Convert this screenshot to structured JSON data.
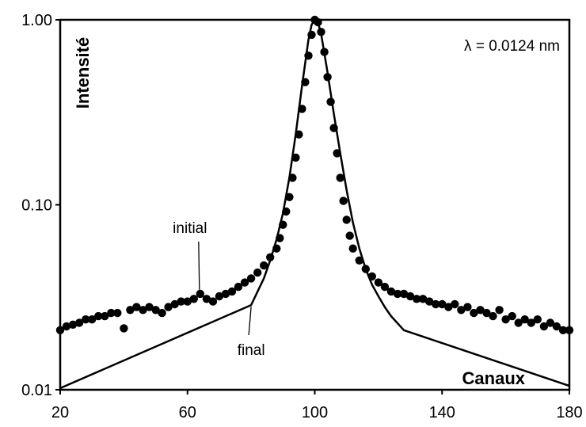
{
  "chart_data": {
    "type": "scatter",
    "title": "",
    "xlabel": "Canaux",
    "ylabel": "Intensité",
    "xlim": [
      20,
      180
    ],
    "ylim": [
      0.01,
      1.0
    ],
    "yscale": "log",
    "grid": false,
    "x_ticks": [
      "20",
      "60",
      "100",
      "140",
      "180"
    ],
    "x_tick_values": [
      20,
      60,
      100,
      140,
      180
    ],
    "y_ticks": [
      "0.01",
      "0.10",
      "1.00"
    ],
    "y_tick_values": [
      0.01,
      0.1,
      1.0
    ],
    "annotation": "λ = 0.0124 nm",
    "series": [
      {
        "name": "initial",
        "style": "points",
        "color": "#000000",
        "x": [
          20,
          22,
          24,
          26,
          28,
          30,
          32,
          34,
          36,
          38,
          40,
          42,
          44,
          46,
          48,
          50,
          52,
          54,
          56,
          58,
          60,
          62,
          64,
          66,
          68,
          70,
          72,
          74,
          76,
          78,
          80,
          82,
          84,
          86,
          88,
          89,
          90,
          91,
          92,
          93,
          94,
          95,
          96,
          97,
          98,
          99,
          100,
          101,
          102,
          103,
          104,
          105,
          106,
          107,
          108,
          109,
          110,
          111,
          112,
          114,
          116,
          118,
          120,
          122,
          124,
          126,
          128,
          130,
          132,
          134,
          136,
          138,
          140,
          142,
          144,
          146,
          148,
          150,
          152,
          154,
          156,
          158,
          160,
          162,
          164,
          166,
          168,
          170,
          172,
          174,
          176,
          178,
          180
        ],
        "y": [
          0.021,
          0.022,
          0.0225,
          0.023,
          0.024,
          0.024,
          0.025,
          0.025,
          0.026,
          0.026,
          0.0215,
          0.027,
          0.028,
          0.027,
          0.028,
          0.027,
          0.026,
          0.028,
          0.029,
          0.03,
          0.03,
          0.031,
          0.033,
          0.031,
          0.03,
          0.032,
          0.033,
          0.034,
          0.036,
          0.038,
          0.04,
          0.043,
          0.047,
          0.052,
          0.058,
          0.066,
          0.078,
          0.092,
          0.11,
          0.14,
          0.18,
          0.24,
          0.33,
          0.46,
          0.64,
          0.83,
          1.0,
          0.97,
          0.86,
          0.67,
          0.49,
          0.36,
          0.26,
          0.19,
          0.14,
          0.105,
          0.083,
          0.068,
          0.058,
          0.05,
          0.045,
          0.041,
          0.038,
          0.036,
          0.034,
          0.033,
          0.033,
          0.032,
          0.031,
          0.031,
          0.03,
          0.029,
          0.029,
          0.028,
          0.029,
          0.027,
          0.028,
          0.026,
          0.027,
          0.026,
          0.025,
          0.027,
          0.024,
          0.025,
          0.023,
          0.024,
          0.023,
          0.024,
          0.022,
          0.023,
          0.022,
          0.021,
          0.021
        ]
      },
      {
        "name": "final",
        "style": "line",
        "color": "#000000",
        "x": [
          20,
          80,
          84,
          86,
          88,
          90,
          92,
          94,
          96,
          98,
          99,
          100,
          101,
          102,
          104,
          106,
          108,
          110,
          112,
          114,
          116,
          118,
          120,
          122,
          124,
          128,
          180
        ],
        "y": [
          0.0102,
          0.0287,
          0.04,
          0.05,
          0.065,
          0.09,
          0.14,
          0.24,
          0.44,
          0.78,
          0.94,
          1.0,
          0.97,
          0.84,
          0.52,
          0.31,
          0.19,
          0.12,
          0.08,
          0.058,
          0.045,
          0.037,
          0.032,
          0.028,
          0.025,
          0.021,
          0.0105
        ]
      }
    ],
    "labels": [
      {
        "text": "initial",
        "x": 64,
        "y": 0.034
      },
      {
        "text": "final",
        "x": 80,
        "y": 0.0287
      }
    ]
  }
}
